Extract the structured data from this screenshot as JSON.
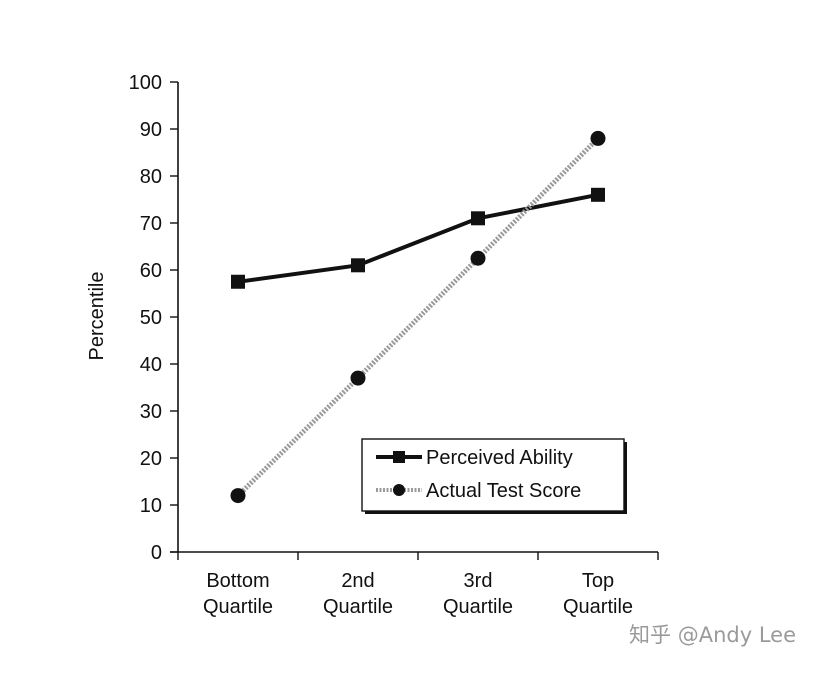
{
  "chart_data": {
    "type": "line",
    "title": "",
    "xlabel": "",
    "ylabel": "Percentile",
    "categories": [
      [
        "Bottom",
        "Quartile"
      ],
      [
        "2nd",
        "Quartile"
      ],
      [
        "3rd",
        "Quartile"
      ],
      [
        "Top",
        "Quartile"
      ]
    ],
    "ylim": [
      0,
      100
    ],
    "yticks": [
      "0",
      "10",
      "20",
      "30",
      "40",
      "50",
      "60",
      "70",
      "80",
      "90",
      "100"
    ],
    "grid": false,
    "legend_position": "bottom-right",
    "series": [
      {
        "name": "Perceived Ability",
        "values": [
          57.5,
          61,
          71,
          76
        ],
        "color": "#111111",
        "marker": "square",
        "line_style": "solid"
      },
      {
        "name": "Actual Test Score",
        "values": [
          12,
          37,
          62.5,
          88
        ],
        "color": "#9a9a9a",
        "marker": "circle",
        "line_style": "dotted"
      }
    ]
  },
  "watermark": "知乎 @Andy Lee"
}
